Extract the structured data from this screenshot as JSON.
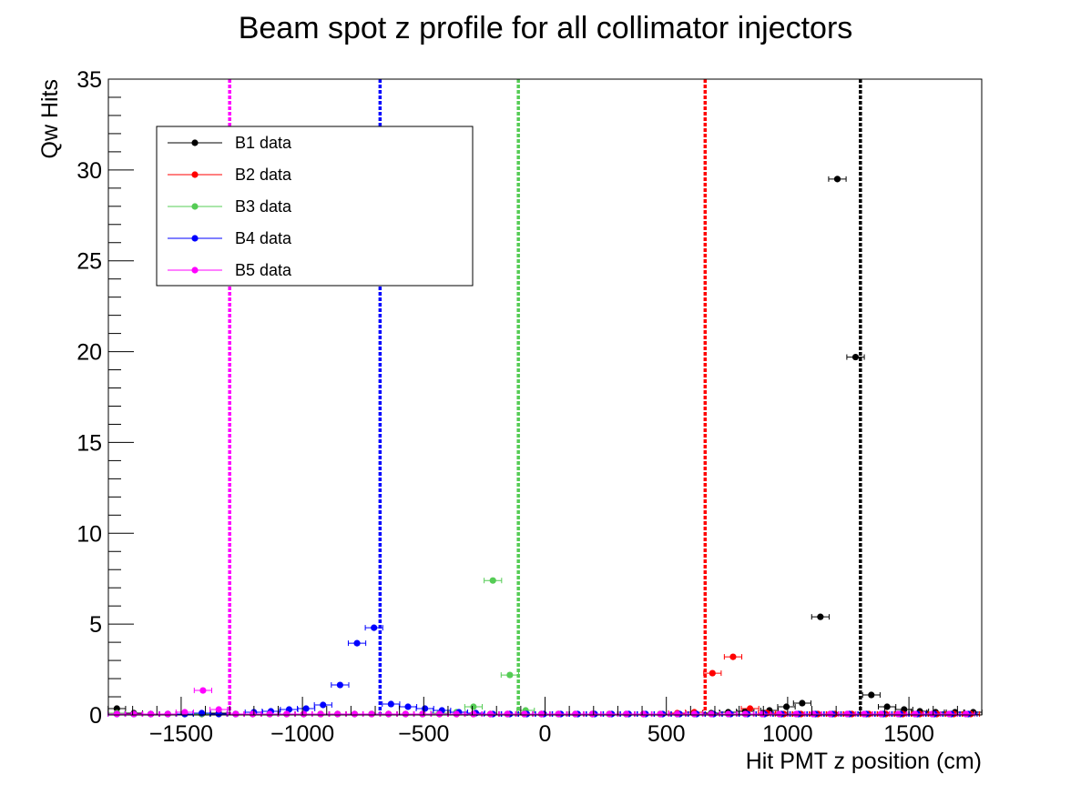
{
  "chart_data": {
    "type": "scatter",
    "title": "Beam spot z profile for all collimator injectors",
    "xlabel": "Hit PMT z position (cm)",
    "ylabel": "Qw Hits",
    "xlim": [
      -1800,
      1800
    ],
    "ylim": [
      0,
      35
    ],
    "x_ticks": [
      -1500,
      -1000,
      -500,
      0,
      500,
      1000,
      1500
    ],
    "y_ticks": [
      0,
      5,
      10,
      15,
      20,
      25,
      30,
      35
    ],
    "grid": false,
    "legend_position": "top-left",
    "vertical_lines": [
      {
        "x": -1300,
        "color": "#ff00ff"
      },
      {
        "x": -680,
        "color": "#0000ff"
      },
      {
        "x": -110,
        "color": "#55cc55"
      },
      {
        "x": 660,
        "color": "#ff0000"
      },
      {
        "x": 1300,
        "color": "#000000"
      }
    ],
    "series": [
      {
        "name": "B1 data",
        "color": "#000000",
        "x_error": 36,
        "points": [
          [
            -1765,
            0.35
          ],
          [
            -1695,
            0.1
          ],
          [
            -1625,
            0.05
          ],
          [
            -1555,
            0.05
          ],
          [
            -1485,
            0.05
          ],
          [
            -1415,
            0.05
          ],
          [
            -1345,
            0.1
          ],
          [
            -1275,
            0.05
          ],
          [
            -1205,
            0.05
          ],
          [
            -1135,
            0.05
          ],
          [
            -1065,
            0.05
          ],
          [
            -995,
            0.05
          ],
          [
            -925,
            0.05
          ],
          [
            -855,
            0.05
          ],
          [
            -785,
            0.05
          ],
          [
            -715,
            0.05
          ],
          [
            -645,
            0.05
          ],
          [
            -575,
            0.05
          ],
          [
            -505,
            0.05
          ],
          [
            -435,
            0.05
          ],
          [
            -365,
            0.05
          ],
          [
            -295,
            0.05
          ],
          [
            -225,
            0.05
          ],
          [
            -155,
            0.05
          ],
          [
            -85,
            0.05
          ],
          [
            -15,
            0.05
          ],
          [
            55,
            0.05
          ],
          [
            125,
            0.05
          ],
          [
            195,
            0.05
          ],
          [
            265,
            0.05
          ],
          [
            335,
            0.05
          ],
          [
            405,
            0.05
          ],
          [
            475,
            0.05
          ],
          [
            545,
            0.05
          ],
          [
            615,
            0.05
          ],
          [
            685,
            0.1
          ],
          [
            755,
            0.15
          ],
          [
            825,
            0.2
          ],
          [
            925,
            0.25
          ],
          [
            995,
            0.45
          ],
          [
            1060,
            0.65
          ],
          [
            1135,
            5.4
          ],
          [
            1205,
            29.5
          ],
          [
            1280,
            19.7
          ],
          [
            1345,
            1.1
          ],
          [
            1410,
            0.45
          ],
          [
            1480,
            0.3
          ],
          [
            1545,
            0.2
          ],
          [
            1610,
            0.15
          ],
          [
            1690,
            0.15
          ],
          [
            1765,
            0.15
          ]
        ]
      },
      {
        "name": "B2 data",
        "color": "#ff0000",
        "x_error": 36,
        "points": [
          [
            -1765,
            0.1
          ],
          [
            -1695,
            0.05
          ],
          [
            -1625,
            0.05
          ],
          [
            -1555,
            0.05
          ],
          [
            -1485,
            0.05
          ],
          [
            -1415,
            0.05
          ],
          [
            -1345,
            0.05
          ],
          [
            -1275,
            0.05
          ],
          [
            -1205,
            0.05
          ],
          [
            -1135,
            0.05
          ],
          [
            -1065,
            0.05
          ],
          [
            -995,
            0.05
          ],
          [
            -925,
            0.05
          ],
          [
            -855,
            0.05
          ],
          [
            -785,
            0.05
          ],
          [
            -715,
            0.05
          ],
          [
            -645,
            0.05
          ],
          [
            -575,
            0.05
          ],
          [
            -505,
            0.05
          ],
          [
            -435,
            0.05
          ],
          [
            -365,
            0.05
          ],
          [
            -295,
            0.05
          ],
          [
            -225,
            0.05
          ],
          [
            -155,
            0.05
          ],
          [
            -85,
            0.05
          ],
          [
            -15,
            0.05
          ],
          [
            55,
            0.05
          ],
          [
            125,
            0.05
          ],
          [
            195,
            0.05
          ],
          [
            265,
            0.05
          ],
          [
            335,
            0.05
          ],
          [
            405,
            0.05
          ],
          [
            475,
            0.05
          ],
          [
            545,
            0.1
          ],
          [
            615,
            0.15
          ],
          [
            690,
            2.3
          ],
          [
            775,
            3.2
          ],
          [
            845,
            0.35
          ],
          [
            915,
            0.1
          ],
          [
            985,
            0.05
          ],
          [
            1055,
            0.05
          ],
          [
            1125,
            0.05
          ],
          [
            1195,
            0.05
          ],
          [
            1265,
            0.05
          ],
          [
            1335,
            0.05
          ],
          [
            1405,
            0.05
          ],
          [
            1475,
            0.05
          ],
          [
            1545,
            0.05
          ],
          [
            1615,
            0.05
          ],
          [
            1685,
            0.05
          ],
          [
            1755,
            0.05
          ]
        ]
      },
      {
        "name": "B3 data",
        "color": "#55cc55",
        "x_error": 36,
        "points": [
          [
            -1765,
            0.1
          ],
          [
            -1695,
            0.05
          ],
          [
            -1625,
            0.05
          ],
          [
            -1555,
            0.05
          ],
          [
            -1485,
            0.05
          ],
          [
            -1415,
            0.05
          ],
          [
            -1345,
            0.05
          ],
          [
            -1275,
            0.05
          ],
          [
            -1205,
            0.05
          ],
          [
            -1135,
            0.05
          ],
          [
            -1065,
            0.05
          ],
          [
            -995,
            0.05
          ],
          [
            -925,
            0.05
          ],
          [
            -855,
            0.05
          ],
          [
            -785,
            0.05
          ],
          [
            -715,
            0.05
          ],
          [
            -645,
            0.05
          ],
          [
            -575,
            0.05
          ],
          [
            -505,
            0.05
          ],
          [
            -435,
            0.1
          ],
          [
            -365,
            0.15
          ],
          [
            -295,
            0.45
          ],
          [
            -215,
            7.4
          ],
          [
            -145,
            2.2
          ],
          [
            -80,
            0.25
          ],
          [
            -15,
            0.05
          ],
          [
            55,
            0.05
          ],
          [
            125,
            0.05
          ],
          [
            195,
            0.05
          ],
          [
            265,
            0.05
          ],
          [
            335,
            0.05
          ],
          [
            405,
            0.05
          ],
          [
            475,
            0.05
          ],
          [
            545,
            0.05
          ],
          [
            615,
            0.05
          ],
          [
            685,
            0.05
          ],
          [
            755,
            0.05
          ],
          [
            825,
            0.05
          ],
          [
            895,
            0.05
          ],
          [
            965,
            0.05
          ],
          [
            1035,
            0.05
          ],
          [
            1105,
            0.05
          ],
          [
            1175,
            0.05
          ],
          [
            1245,
            0.05
          ],
          [
            1315,
            0.05
          ],
          [
            1385,
            0.05
          ],
          [
            1455,
            0.05
          ],
          [
            1525,
            0.05
          ],
          [
            1595,
            0.05
          ],
          [
            1665,
            0.05
          ],
          [
            1735,
            0.05
          ]
        ]
      },
      {
        "name": "B4 data",
        "color": "#0000ff",
        "x_error": 36,
        "points": [
          [
            -1765,
            0.05
          ],
          [
            -1695,
            0.05
          ],
          [
            -1625,
            0.05
          ],
          [
            -1555,
            0.05
          ],
          [
            -1485,
            0.05
          ],
          [
            -1415,
            0.1
          ],
          [
            -1345,
            0.05
          ],
          [
            -1275,
            0.05
          ],
          [
            -1200,
            0.15
          ],
          [
            -1130,
            0.2
          ],
          [
            -1055,
            0.3
          ],
          [
            -985,
            0.35
          ],
          [
            -915,
            0.55
          ],
          [
            -845,
            1.65
          ],
          [
            -775,
            3.95
          ],
          [
            -705,
            4.8
          ],
          [
            -635,
            0.6
          ],
          [
            -565,
            0.45
          ],
          [
            -495,
            0.35
          ],
          [
            -425,
            0.25
          ],
          [
            -355,
            0.15
          ],
          [
            -285,
            0.1
          ],
          [
            -215,
            0.05
          ],
          [
            -145,
            0.05
          ],
          [
            -75,
            0.05
          ],
          [
            -5,
            0.05
          ],
          [
            65,
            0.05
          ],
          [
            135,
            0.05
          ],
          [
            205,
            0.05
          ],
          [
            275,
            0.05
          ],
          [
            345,
            0.05
          ],
          [
            415,
            0.05
          ],
          [
            485,
            0.05
          ],
          [
            555,
            0.05
          ],
          [
            625,
            0.05
          ],
          [
            695,
            0.05
          ],
          [
            765,
            0.05
          ],
          [
            835,
            0.05
          ],
          [
            905,
            0.05
          ],
          [
            975,
            0.05
          ],
          [
            1045,
            0.05
          ],
          [
            1115,
            0.05
          ],
          [
            1185,
            0.05
          ],
          [
            1255,
            0.05
          ],
          [
            1325,
            0.05
          ],
          [
            1395,
            0.05
          ],
          [
            1465,
            0.05
          ],
          [
            1535,
            0.05
          ],
          [
            1605,
            0.05
          ],
          [
            1675,
            0.05
          ],
          [
            1745,
            0.05
          ]
        ]
      },
      {
        "name": "B5 data",
        "color": "#ff00ff",
        "x_error": 36,
        "points": [
          [
            -1765,
            0.05
          ],
          [
            -1695,
            0.05
          ],
          [
            -1625,
            0.05
          ],
          [
            -1555,
            0.05
          ],
          [
            -1485,
            0.15
          ],
          [
            -1410,
            1.35
          ],
          [
            -1345,
            0.3
          ],
          [
            -1275,
            0.05
          ],
          [
            -1205,
            0.05
          ],
          [
            -1135,
            0.05
          ],
          [
            -1065,
            0.05
          ],
          [
            -995,
            0.05
          ],
          [
            -925,
            0.05
          ],
          [
            -855,
            0.05
          ],
          [
            -785,
            0.05
          ],
          [
            -715,
            0.05
          ],
          [
            -645,
            0.05
          ],
          [
            -575,
            0.05
          ],
          [
            -505,
            0.05
          ],
          [
            -435,
            0.05
          ],
          [
            -365,
            0.05
          ],
          [
            -295,
            0.05
          ],
          [
            -225,
            0.05
          ],
          [
            -155,
            0.05
          ],
          [
            -85,
            0.05
          ],
          [
            -15,
            0.05
          ],
          [
            55,
            0.05
          ],
          [
            125,
            0.05
          ],
          [
            195,
            0.05
          ],
          [
            265,
            0.05
          ],
          [
            335,
            0.05
          ],
          [
            405,
            0.05
          ],
          [
            475,
            0.05
          ],
          [
            545,
            0.05
          ],
          [
            615,
            0.05
          ],
          [
            685,
            0.05
          ],
          [
            755,
            0.05
          ],
          [
            825,
            0.05
          ],
          [
            895,
            0.05
          ],
          [
            965,
            0.05
          ],
          [
            1035,
            0.05
          ],
          [
            1105,
            0.05
          ],
          [
            1175,
            0.05
          ],
          [
            1245,
            0.05
          ],
          [
            1315,
            0.05
          ],
          [
            1385,
            0.05
          ],
          [
            1455,
            0.05
          ],
          [
            1525,
            0.05
          ],
          [
            1595,
            0.05
          ],
          [
            1665,
            0.05
          ],
          [
            1735,
            0.05
          ]
        ]
      }
    ]
  }
}
